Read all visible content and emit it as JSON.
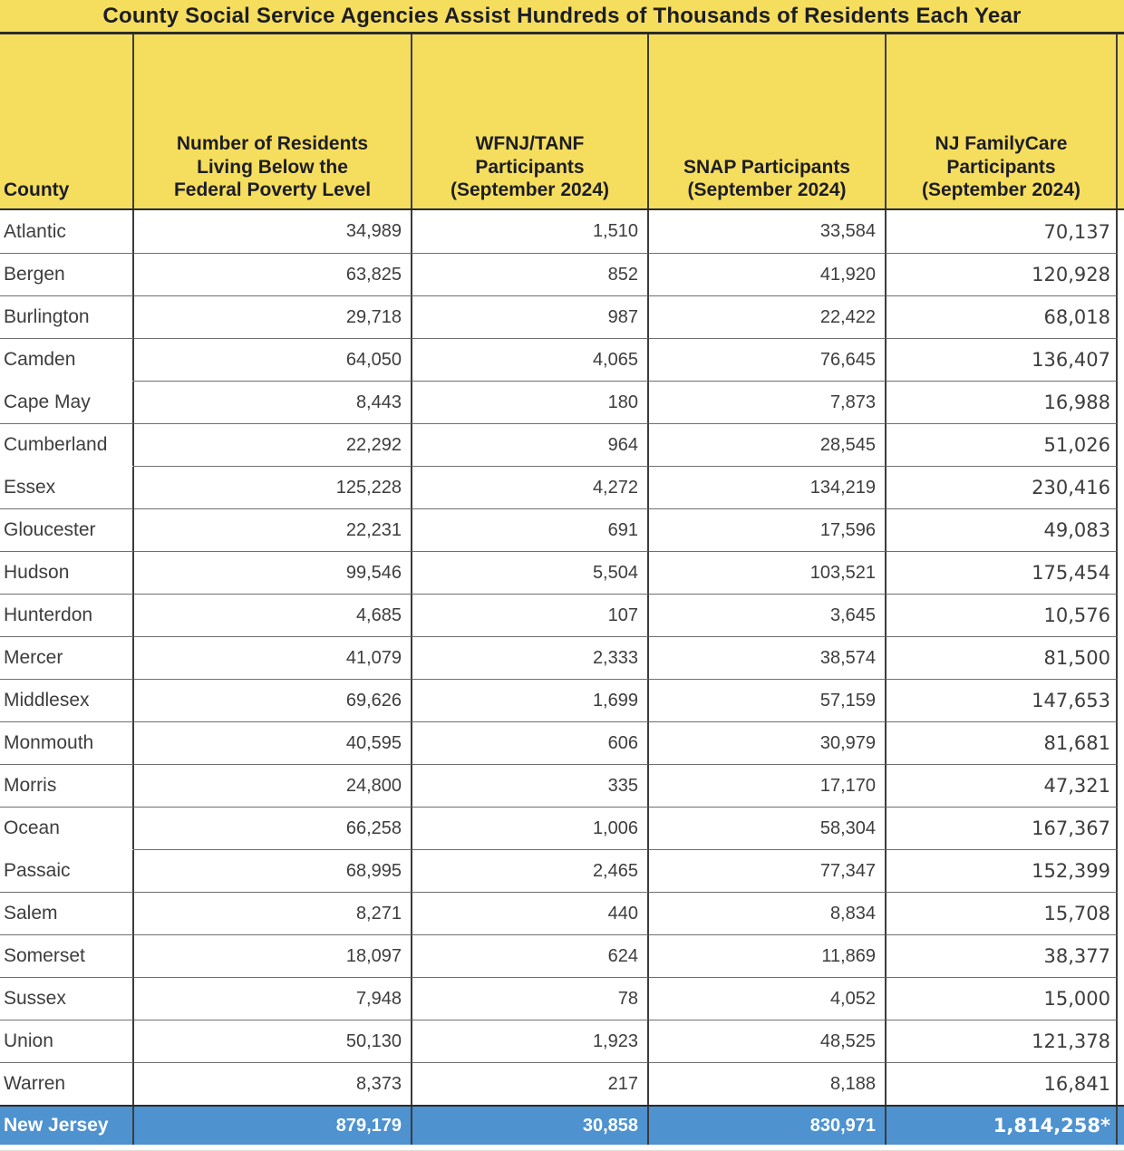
{
  "title": "County Social Service Agencies Assist Hundreds of Thousands of Residents Each Year",
  "colors": {
    "header_bg": "#F5DE5E",
    "total_row_bg": "#4E92D0",
    "total_row_text": "#FFFFFF",
    "header_text": "#1D1D26",
    "body_text": "#3D3D3D"
  },
  "chart_data": {
    "type": "table",
    "title": "County Social Service Agencies Assist Hundreds of Thousands of Residents Each Year",
    "columns": [
      "County",
      "Number of Residents\nLiving Below the\nFederal Poverty Level",
      "WFNJ/TANF\nParticipants\n(September 2024)",
      "SNAP Participants\n(September 2024)",
      "NJ FamilyCare\nParticipants\n(September 2024)"
    ],
    "rows": [
      [
        "Atlantic",
        "34,989",
        "1,510",
        "33,584",
        "70,137"
      ],
      [
        "Bergen",
        "63,825",
        "852",
        "41,920",
        "120,928"
      ],
      [
        "Burlington",
        "29,718",
        "987",
        "22,422",
        "68,018"
      ],
      [
        "Camden",
        "64,050",
        "4,065",
        "76,645",
        "136,407"
      ],
      [
        "Cape May",
        "8,443",
        "180",
        "7,873",
        "16,988"
      ],
      [
        "Cumberland",
        "22,292",
        "964",
        "28,545",
        "51,026"
      ],
      [
        "Essex",
        "125,228",
        "4,272",
        "134,219",
        "230,416"
      ],
      [
        "Gloucester",
        "22,231",
        "691",
        "17,596",
        "49,083"
      ],
      [
        "Hudson",
        "99,546",
        "5,504",
        "103,521",
        "175,454"
      ],
      [
        "Hunterdon",
        "4,685",
        "107",
        "3,645",
        "10,576"
      ],
      [
        "Mercer",
        "41,079",
        "2,333",
        "38,574",
        "81,500"
      ],
      [
        "Middlesex",
        "69,626",
        "1,699",
        "57,159",
        "147,653"
      ],
      [
        "Monmouth",
        "40,595",
        "606",
        "30,979",
        "81,681"
      ],
      [
        "Morris",
        "24,800",
        "335",
        "17,170",
        "47,321"
      ],
      [
        "Ocean",
        "66,258",
        "1,006",
        "58,304",
        "167,367"
      ],
      [
        "Passaic",
        "68,995",
        "2,465",
        "77,347",
        "152,399"
      ],
      [
        "Salem",
        "8,271",
        "440",
        "8,834",
        "15,708"
      ],
      [
        "Somerset",
        "18,097",
        "624",
        "11,869",
        "38,377"
      ],
      [
        "Sussex",
        "7,948",
        "78",
        "4,052",
        "15,000"
      ],
      [
        "Union",
        "50,130",
        "1,923",
        "48,525",
        "121,378"
      ],
      [
        "Warren",
        "8,373",
        "217",
        "8,188",
        "16,841"
      ]
    ],
    "total_row": [
      "New Jersey",
      "879,179",
      "30,858",
      "830,971",
      "1,814,258*"
    ]
  }
}
